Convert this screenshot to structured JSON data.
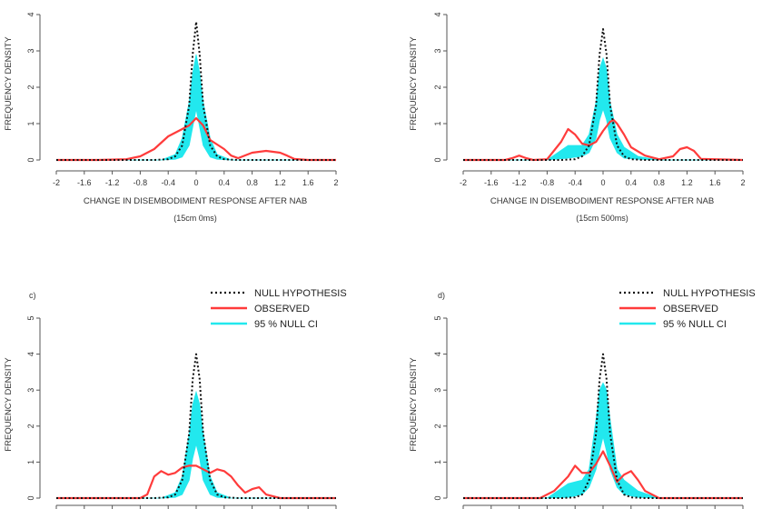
{
  "legend": {
    "null_label": "NULL HYPOTHESIS",
    "observed_label": "OBSERVED",
    "ci_label": "95 % NULL CI"
  },
  "colors": {
    "observed": "#ff3b3b",
    "ci_fill": "#22e8ee",
    "null_line": "#111111",
    "axis": "#555555"
  },
  "chart_data": [
    {
      "type": "line",
      "panel_label": "",
      "xlabel": "CHANGE IN DISEMBODIMENT RESPONSE AFTER NAB",
      "subtitle": "(15cm 0ms)",
      "ylabel": "FREQUENCY DENSITY",
      "xlim": [
        -2,
        2
      ],
      "ylim": [
        0,
        4
      ],
      "xticks": [
        -2,
        -1.6,
        -1.2,
        -0.8,
        -0.4,
        0,
        0.4,
        0.8,
        1.2,
        1.6,
        2
      ],
      "xtick_labels": [
        "-2",
        "-1.6",
        "-1.2",
        "-0.8",
        "-0.4",
        "0",
        "0.4",
        "0.8",
        "1.2",
        "1.6",
        "2"
      ],
      "yticks": [
        0,
        1,
        2,
        3,
        4
      ],
      "ytick_labels": [
        "0",
        "1",
        "2",
        "3",
        "4"
      ],
      "series": [
        {
          "name": "NULL HYPOTHESIS",
          "x": [
            -2,
            -0.6,
            -0.4,
            -0.3,
            -0.2,
            -0.1,
            -0.05,
            0,
            0.05,
            0.1,
            0.2,
            0.3,
            0.4,
            0.6,
            2
          ],
          "y": [
            0,
            0,
            0.02,
            0.1,
            0.4,
            1.5,
            2.9,
            3.8,
            2.9,
            1.5,
            0.4,
            0.1,
            0.02,
            0,
            0
          ]
        },
        {
          "name": "OBSERVED",
          "x": [
            -2,
            -1.4,
            -1.0,
            -0.8,
            -0.6,
            -0.4,
            -0.2,
            -0.1,
            0,
            0.1,
            0.2,
            0.4,
            0.5,
            0.6,
            0.8,
            1.0,
            1.2,
            1.3,
            1.4,
            1.6,
            2
          ],
          "y": [
            0,
            0,
            0.02,
            0.1,
            0.3,
            0.65,
            0.85,
            0.95,
            1.15,
            0.95,
            0.55,
            0.3,
            0.12,
            0.05,
            0.2,
            0.25,
            0.2,
            0.12,
            0.03,
            0,
            0
          ]
        },
        {
          "name": "95 % NULL CI",
          "x": [
            -2,
            -0.5,
            -0.3,
            -0.2,
            -0.1,
            -0.05,
            0,
            0.05,
            0.1,
            0.2,
            0.3,
            0.5,
            2
          ],
          "y_upper": [
            0,
            0,
            0.15,
            0.6,
            1.6,
            2.4,
            2.9,
            2.4,
            1.6,
            0.6,
            0.15,
            0,
            0
          ],
          "y_lower": [
            0,
            0,
            0.02,
            0.08,
            0.4,
            0.9,
            1.4,
            0.9,
            0.4,
            0.08,
            0.02,
            0,
            0
          ]
        }
      ]
    },
    {
      "type": "line",
      "panel_label": "",
      "xlabel": "CHANGE IN DISEMBODIMENT RESPONSE AFTER NAB",
      "subtitle": "(15cm 500ms)",
      "ylabel": "FREQUENCY DENSITY",
      "xlim": [
        -2,
        2
      ],
      "ylim": [
        0,
        4
      ],
      "xticks": [
        -2,
        -1.6,
        -1.2,
        -0.8,
        -0.4,
        0,
        0.4,
        0.8,
        1.2,
        1.6,
        2
      ],
      "xtick_labels": [
        "-2",
        "-1.6",
        "-1.2",
        "-0.8",
        "-0.4",
        "0",
        "0.4",
        "0.8",
        "1.2",
        "1.6",
        "2"
      ],
      "yticks": [
        0,
        1,
        2,
        3,
        4
      ],
      "ytick_labels": [
        "0",
        "1",
        "2",
        "3",
        "4"
      ],
      "series": [
        {
          "name": "NULL HYPOTHESIS",
          "x": [
            -2,
            -0.6,
            -0.4,
            -0.3,
            -0.2,
            -0.1,
            -0.05,
            0,
            0.05,
            0.1,
            0.2,
            0.3,
            0.4,
            0.6,
            2
          ],
          "y": [
            0,
            0,
            0.02,
            0.1,
            0.4,
            1.5,
            2.9,
            3.6,
            2.9,
            1.5,
            0.4,
            0.1,
            0.02,
            0,
            0
          ]
        },
        {
          "name": "OBSERVED",
          "x": [
            -2,
            -1.4,
            -1.3,
            -1.2,
            -1.1,
            -1.0,
            -0.8,
            -0.6,
            -0.5,
            -0.4,
            -0.3,
            -0.2,
            -0.1,
            0,
            0.1,
            0.15,
            0.2,
            0.3,
            0.4,
            0.6,
            0.8,
            1.0,
            1.1,
            1.2,
            1.3,
            1.4,
            2
          ],
          "y": [
            0,
            0,
            0.05,
            0.12,
            0.05,
            0,
            0.02,
            0.5,
            0.85,
            0.7,
            0.45,
            0.4,
            0.5,
            0.8,
            1.05,
            1.1,
            1.0,
            0.7,
            0.35,
            0.12,
            0.02,
            0.1,
            0.3,
            0.35,
            0.25,
            0.03,
            0
          ]
        },
        {
          "name": "95 % NULL CI",
          "x": [
            -2,
            -0.8,
            -0.5,
            -0.3,
            -0.2,
            -0.1,
            -0.05,
            0,
            0.05,
            0.1,
            0.2,
            0.3,
            0.5,
            0.8,
            2
          ],
          "y_upper": [
            0,
            0,
            0.4,
            0.4,
            0.7,
            1.6,
            2.5,
            2.8,
            2.5,
            1.6,
            0.7,
            0.35,
            0.1,
            0,
            0
          ],
          "y_lower": [
            0,
            0,
            0.05,
            0.1,
            0.2,
            0.6,
            1.1,
            1.4,
            1.1,
            0.6,
            0.2,
            0.05,
            0.02,
            0,
            0
          ]
        }
      ]
    },
    {
      "type": "line",
      "panel_label": "c)",
      "xlabel": "",
      "subtitle": "",
      "ylabel": "FREQUENCY DENSITY",
      "xlim": [
        -2,
        2
      ],
      "ylim": [
        0,
        5
      ],
      "xticks": [
        -2,
        -1.6,
        -1.2,
        -0.8,
        -0.4,
        0,
        0.4,
        0.8,
        1.2,
        1.6,
        2
      ],
      "yticks": [
        0,
        1,
        2,
        3,
        4,
        5
      ],
      "ytick_labels": [
        "0",
        "1",
        "2",
        "3",
        "4",
        "5"
      ],
      "series": [
        {
          "name": "NULL HYPOTHESIS",
          "x": [
            -2,
            -0.6,
            -0.4,
            -0.3,
            -0.2,
            -0.1,
            -0.05,
            0,
            0.05,
            0.1,
            0.2,
            0.3,
            0.4,
            0.6,
            2
          ],
          "y": [
            0,
            0,
            0.02,
            0.1,
            0.5,
            1.8,
            3.3,
            4.0,
            3.3,
            1.8,
            0.5,
            0.1,
            0.02,
            0,
            0
          ]
        },
        {
          "name": "OBSERVED",
          "x": [
            -2,
            -0.8,
            -0.7,
            -0.6,
            -0.5,
            -0.4,
            -0.3,
            -0.2,
            -0.1,
            0,
            0.1,
            0.2,
            0.3,
            0.4,
            0.5,
            0.6,
            0.7,
            0.8,
            0.9,
            1.0,
            1.2,
            2
          ],
          "y": [
            0,
            0,
            0.1,
            0.6,
            0.75,
            0.65,
            0.7,
            0.85,
            0.9,
            0.9,
            0.8,
            0.7,
            0.8,
            0.75,
            0.6,
            0.35,
            0.15,
            0.25,
            0.3,
            0.1,
            0,
            0
          ]
        },
        {
          "name": "95 % NULL CI",
          "x": [
            -2,
            -0.5,
            -0.3,
            -0.2,
            -0.1,
            -0.05,
            0,
            0.05,
            0.1,
            0.2,
            0.3,
            0.5,
            2
          ],
          "y_upper": [
            0,
            0,
            0.15,
            0.6,
            1.8,
            2.6,
            2.95,
            2.6,
            1.8,
            0.6,
            0.15,
            0,
            0
          ],
          "y_lower": [
            0,
            0,
            0.02,
            0.1,
            0.5,
            1.1,
            1.5,
            1.1,
            0.5,
            0.1,
            0.02,
            0,
            0
          ]
        }
      ]
    },
    {
      "type": "line",
      "panel_label": "d)",
      "xlabel": "",
      "subtitle": "",
      "ylabel": "FREQUENCY DENSITY",
      "xlim": [
        -2,
        2
      ],
      "ylim": [
        0,
        5
      ],
      "xticks": [
        -2,
        -1.6,
        -1.2,
        -0.8,
        -0.4,
        0,
        0.4,
        0.8,
        1.2,
        1.6,
        2
      ],
      "yticks": [
        0,
        1,
        2,
        3,
        4,
        5
      ],
      "ytick_labels": [
        "0",
        "1",
        "2",
        "3",
        "4",
        "5"
      ],
      "series": [
        {
          "name": "NULL HYPOTHESIS",
          "x": [
            -2,
            -0.6,
            -0.4,
            -0.3,
            -0.2,
            -0.1,
            -0.05,
            0,
            0.05,
            0.1,
            0.2,
            0.3,
            0.4,
            0.6,
            2
          ],
          "y": [
            0,
            0,
            0.02,
            0.1,
            0.5,
            1.8,
            3.3,
            4.0,
            3.3,
            1.8,
            0.5,
            0.1,
            0.02,
            0,
            0
          ]
        },
        {
          "name": "OBSERVED",
          "x": [
            -2,
            -0.9,
            -0.7,
            -0.5,
            -0.4,
            -0.3,
            -0.2,
            -0.1,
            0,
            0.1,
            0.2,
            0.3,
            0.4,
            0.5,
            0.6,
            0.8,
            2
          ],
          "y": [
            0,
            0,
            0.2,
            0.6,
            0.9,
            0.7,
            0.7,
            0.95,
            1.3,
            0.9,
            0.45,
            0.65,
            0.75,
            0.5,
            0.2,
            0,
            0
          ]
        },
        {
          "name": "95 % NULL CI",
          "x": [
            -2,
            -0.8,
            -0.5,
            -0.3,
            -0.2,
            -0.1,
            -0.05,
            0,
            0.05,
            0.1,
            0.2,
            0.3,
            0.5,
            0.8,
            2
          ],
          "y_upper": [
            0,
            0,
            0.4,
            0.5,
            0.8,
            2.2,
            3.0,
            3.2,
            3.0,
            2.2,
            0.8,
            0.5,
            0.2,
            0,
            0
          ],
          "y_lower": [
            0,
            0,
            0.02,
            0.1,
            0.3,
            0.8,
            1.3,
            1.7,
            1.3,
            0.8,
            0.3,
            0.1,
            0.02,
            0,
            0
          ]
        }
      ]
    }
  ]
}
